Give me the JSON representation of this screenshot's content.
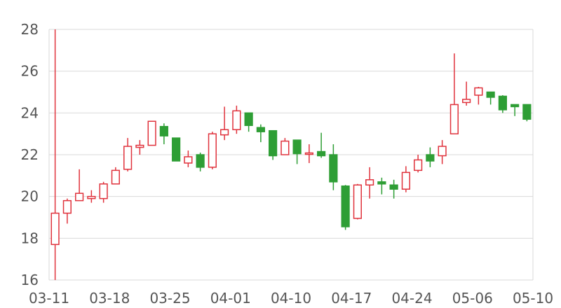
{
  "chart_data": {
    "type": "candlestick",
    "title": "",
    "xlabel": "",
    "ylabel": "",
    "ylim": [
      16,
      28
    ],
    "yticks": [
      "16",
      "18",
      "20",
      "22",
      "24",
      "26",
      "28"
    ],
    "xticks": [
      {
        "label": "03-11",
        "index": 0
      },
      {
        "label": "03-18",
        "index": 5
      },
      {
        "label": "03-25",
        "index": 10
      },
      {
        "label": "04-01",
        "index": 15
      },
      {
        "label": "04-10",
        "index": 20
      },
      {
        "label": "04-17",
        "index": 25
      },
      {
        "label": "04-24",
        "index": 30
      },
      {
        "label": "05-06",
        "index": 35
      },
      {
        "label": "05-10",
        "index": 40
      }
    ],
    "colors": {
      "up": "#e0323c",
      "down": "#2e9e35",
      "grid": "#d9d9d9",
      "axis": "#cccccc",
      "text": "#555555"
    },
    "grid": true,
    "candles": [
      {
        "open": 17.7,
        "close": 19.2,
        "low": 16.0,
        "high": 28.0
      },
      {
        "open": 19.2,
        "close": 19.8,
        "low": 18.7,
        "high": 19.9
      },
      {
        "open": 19.8,
        "close": 20.15,
        "low": 19.8,
        "high": 21.3
      },
      {
        "open": 19.9,
        "close": 20.0,
        "low": 19.7,
        "high": 20.3
      },
      {
        "open": 19.9,
        "close": 20.6,
        "low": 19.7,
        "high": 20.7
      },
      {
        "open": 20.6,
        "close": 21.25,
        "low": 20.6,
        "high": 21.4
      },
      {
        "open": 21.3,
        "close": 22.4,
        "low": 21.2,
        "high": 22.8
      },
      {
        "open": 22.35,
        "close": 22.45,
        "low": 22.0,
        "high": 22.7
      },
      {
        "open": 22.45,
        "close": 23.6,
        "low": 22.45,
        "high": 23.6
      },
      {
        "open": 23.35,
        "close": 22.9,
        "low": 22.5,
        "high": 23.5
      },
      {
        "open": 22.8,
        "close": 21.7,
        "low": 21.7,
        "high": 22.8
      },
      {
        "open": 21.6,
        "close": 21.9,
        "low": 21.4,
        "high": 22.2
      },
      {
        "open": 22.0,
        "close": 21.4,
        "low": 21.2,
        "high": 22.1
      },
      {
        "open": 21.4,
        "close": 23.0,
        "low": 21.3,
        "high": 23.1
      },
      {
        "open": 22.95,
        "close": 23.2,
        "low": 22.7,
        "high": 24.3
      },
      {
        "open": 23.2,
        "close": 24.1,
        "low": 23.0,
        "high": 24.35
      },
      {
        "open": 24.0,
        "close": 23.4,
        "low": 23.1,
        "high": 24.0
      },
      {
        "open": 23.3,
        "close": 23.1,
        "low": 22.6,
        "high": 23.45
      },
      {
        "open": 23.15,
        "close": 21.95,
        "low": 21.75,
        "high": 23.15
      },
      {
        "open": 22.0,
        "close": 22.65,
        "low": 22.0,
        "high": 22.8
      },
      {
        "open": 22.7,
        "close": 22.05,
        "low": 21.55,
        "high": 22.7
      },
      {
        "open": 22.05,
        "close": 22.05,
        "low": 21.6,
        "high": 22.5
      },
      {
        "open": 22.15,
        "close": 21.95,
        "low": 21.85,
        "high": 23.05
      },
      {
        "open": 22.0,
        "close": 20.7,
        "low": 20.3,
        "high": 22.5
      },
      {
        "open": 20.5,
        "close": 18.55,
        "low": 18.4,
        "high": 20.55
      },
      {
        "open": 18.95,
        "close": 20.55,
        "low": 18.9,
        "high": 20.6
      },
      {
        "open": 20.55,
        "close": 20.8,
        "low": 19.9,
        "high": 21.4
      },
      {
        "open": 20.7,
        "close": 20.6,
        "low": 20.1,
        "high": 20.9
      },
      {
        "open": 20.55,
        "close": 20.35,
        "low": 19.9,
        "high": 20.8
      },
      {
        "open": 20.35,
        "close": 21.15,
        "low": 20.2,
        "high": 21.45
      },
      {
        "open": 21.25,
        "close": 21.75,
        "low": 21.15,
        "high": 22.0
      },
      {
        "open": 22.0,
        "close": 21.7,
        "low": 21.4,
        "high": 22.35
      },
      {
        "open": 21.95,
        "close": 22.4,
        "low": 21.55,
        "high": 22.7
      },
      {
        "open": 23.0,
        "close": 24.4,
        "low": 23.0,
        "high": 26.85
      },
      {
        "open": 24.5,
        "close": 24.65,
        "low": 24.35,
        "high": 25.5
      },
      {
        "open": 24.85,
        "close": 25.2,
        "low": 24.4,
        "high": 25.25
      },
      {
        "open": 25.0,
        "close": 24.75,
        "low": 24.4,
        "high": 25.0
      },
      {
        "open": 24.8,
        "close": 24.15,
        "low": 24.0,
        "high": 24.85
      },
      {
        "open": 24.4,
        "close": 24.3,
        "low": 23.85,
        "high": 24.4
      },
      {
        "open": 24.4,
        "close": 23.7,
        "low": 23.6,
        "high": 24.4
      }
    ]
  }
}
